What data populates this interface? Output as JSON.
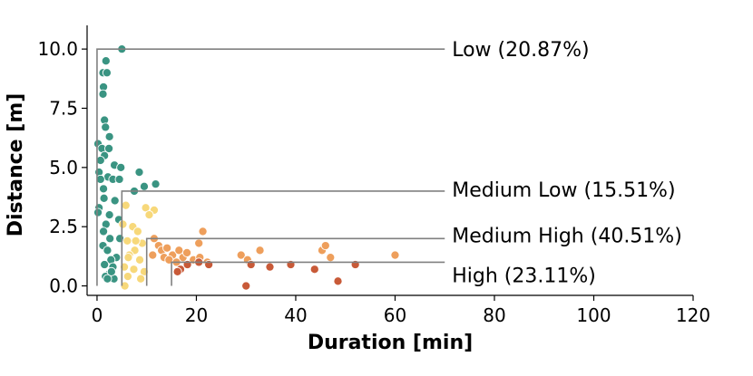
{
  "chart_data": {
    "type": "scatter",
    "xlabel": "Duration [min]",
    "ylabel": "Distance [m]",
    "xlim": [
      -2,
      120
    ],
    "ylim": [
      -0.4,
      11.0
    ],
    "xticks": [
      "0",
      "20",
      "40",
      "60",
      "80",
      "100",
      "120"
    ],
    "yticks": [
      "0.0",
      "2.5",
      "5.0",
      "7.5",
      "10.0"
    ],
    "grid": false,
    "colors": {
      "Low": "#3a9482",
      "Medium Low": "#f7d87a",
      "Medium High": "#ee9f5c",
      "High": "#c85a38",
      "threshold_line": "#808080"
    },
    "thresholds": [
      {
        "group": "Low",
        "x_start": 0,
        "y": 10.0,
        "label": "Low (20.87%)"
      },
      {
        "group": "Medium Low",
        "x_start": 5,
        "y": 4.0,
        "label": "Medium Low (15.51%)"
      },
      {
        "group": "Medium High",
        "x_start": 10,
        "y": 2.0,
        "label": "Medium High (40.51%)"
      },
      {
        "group": "High",
        "x_start": 15,
        "y": 1.0,
        "label": "High (23.11%)"
      }
    ],
    "threshold_line_end_x": 70,
    "series": [
      {
        "name": "Low",
        "points": [
          [
            5,
            10.0
          ],
          [
            1.8,
            9.5
          ],
          [
            1.2,
            9.0
          ],
          [
            2,
            9.0
          ],
          [
            1.3,
            8.4
          ],
          [
            1.2,
            8.1
          ],
          [
            1.5,
            7.0
          ],
          [
            1.7,
            6.7
          ],
          [
            2.5,
            6.3
          ],
          [
            0.2,
            6.0
          ],
          [
            1,
            5.8
          ],
          [
            2.4,
            5.8
          ],
          [
            1.5,
            5.5
          ],
          [
            0.7,
            5.3
          ],
          [
            3.5,
            5.1
          ],
          [
            4.8,
            5.0
          ],
          [
            0.4,
            4.8
          ],
          [
            2.2,
            4.6
          ],
          [
            3.2,
            4.5
          ],
          [
            4.5,
            4.5
          ],
          [
            8.5,
            4.8
          ],
          [
            11.8,
            4.3
          ],
          [
            9.5,
            4.2
          ],
          [
            7.5,
            4.0
          ],
          [
            0.7,
            4.5
          ],
          [
            1.3,
            4.1
          ],
          [
            1.4,
            3.7
          ],
          [
            0.4,
            3.3
          ],
          [
            2.5,
            3.0
          ],
          [
            0.2,
            3.1
          ],
          [
            3.6,
            3.6
          ],
          [
            1.8,
            2.6
          ],
          [
            4.4,
            2.8
          ],
          [
            1.3,
            2.3
          ],
          [
            2.6,
            2.0
          ],
          [
            4.6,
            2.0
          ],
          [
            1.2,
            1.7
          ],
          [
            2.1,
            1.5
          ],
          [
            3.9,
            1.2
          ],
          [
            2.8,
            1.1
          ],
          [
            1.5,
            0.9
          ],
          [
            3.2,
            0.8
          ],
          [
            2.4,
            0.5
          ],
          [
            1.7,
            0.4
          ],
          [
            3.4,
            0.3
          ],
          [
            2.1,
            0.3
          ],
          [
            2.9,
            0.6
          ]
        ]
      },
      {
        "name": "Medium Low",
        "points": [
          [
            5.8,
            3.4
          ],
          [
            9.8,
            3.3
          ],
          [
            11.5,
            3.2
          ],
          [
            5.2,
            2.6
          ],
          [
            10.5,
            3.0
          ],
          [
            7.2,
            2.5
          ],
          [
            8.2,
            2.3
          ],
          [
            6.1,
            1.9
          ],
          [
            9.1,
            1.8
          ],
          [
            7.6,
            1.5
          ],
          [
            6.5,
            1.3
          ],
          [
            8.6,
            1.1
          ],
          [
            5.5,
            0.8
          ],
          [
            7.4,
            0.7
          ],
          [
            9.5,
            0.6
          ],
          [
            6.2,
            0.4
          ],
          [
            8.8,
            0.3
          ],
          [
            5.6,
            0.0
          ],
          [
            6.3,
            1.2
          ],
          [
            7.8,
            1.9
          ]
        ]
      },
      {
        "name": "Medium High",
        "points": [
          [
            11.5,
            2.0
          ],
          [
            12.4,
            1.7
          ],
          [
            13,
            1.5
          ],
          [
            14.1,
            1.6
          ],
          [
            15.2,
            1.3
          ],
          [
            16.5,
            1.5
          ],
          [
            17.3,
            1.2
          ],
          [
            18.1,
            1.4
          ],
          [
            19.4,
            1.1
          ],
          [
            20.7,
            1.2
          ],
          [
            21.3,
            2.3
          ],
          [
            20.5,
            1.8
          ],
          [
            22.2,
            1.0
          ],
          [
            13.5,
            1.2
          ],
          [
            11.2,
            1.3
          ],
          [
            29,
            1.3
          ],
          [
            30.3,
            1.1
          ],
          [
            32.8,
            1.5
          ],
          [
            45.3,
            1.5
          ],
          [
            46,
            1.7
          ],
          [
            47,
            1.2
          ],
          [
            60,
            1.3
          ],
          [
            14.5,
            1.1
          ],
          [
            16,
            1.0
          ]
        ]
      },
      {
        "name": "High",
        "points": [
          [
            16.8,
            0.7
          ],
          [
            18.2,
            0.9
          ],
          [
            20.5,
            1.0
          ],
          [
            22.5,
            0.9
          ],
          [
            31,
            0.9
          ],
          [
            34.8,
            0.8
          ],
          [
            39,
            0.9
          ],
          [
            43.8,
            0.7
          ],
          [
            48.5,
            0.2
          ],
          [
            52,
            0.9
          ],
          [
            30,
            0.0
          ],
          [
            16.2,
            0.6
          ]
        ]
      }
    ]
  }
}
